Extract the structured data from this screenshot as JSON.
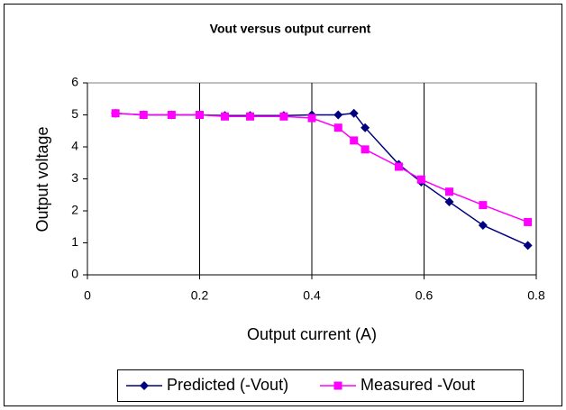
{
  "chart_data": {
    "type": "scatter",
    "title": "Vout versus output current",
    "x_label": "Output current (A)",
    "y_label": "Output voltage",
    "xlim": [
      0,
      0.8
    ],
    "xticks": [
      0,
      0.2,
      0.4,
      0.6,
      0.8
    ],
    "ylim": [
      0,
      6
    ],
    "yticks": [
      0,
      1,
      2,
      3,
      4,
      5,
      6
    ],
    "grid": "x",
    "legend": "bottom",
    "series": [
      {
        "name": "Predicted (-Vout)",
        "color": "#000080",
        "marker": "diamond",
        "x": [
          0.05,
          0.1,
          0.15,
          0.2,
          0.245,
          0.29,
          0.35,
          0.4,
          0.447,
          0.475,
          0.495,
          0.555,
          0.595,
          0.645,
          0.705,
          0.785
        ],
        "values": [
          5.05,
          5.0,
          5.0,
          5.0,
          4.98,
          4.98,
          4.98,
          5.0,
          5.0,
          5.05,
          4.6,
          3.45,
          2.9,
          2.28,
          1.55,
          0.92
        ]
      },
      {
        "name": "Measured -Vout",
        "color": "#ff00ff",
        "marker": "square",
        "x": [
          0.05,
          0.1,
          0.15,
          0.2,
          0.245,
          0.29,
          0.35,
          0.4,
          0.447,
          0.475,
          0.495,
          0.555,
          0.595,
          0.645,
          0.705,
          0.785
        ],
        "values": [
          5.05,
          5.0,
          5.0,
          5.0,
          4.95,
          4.95,
          4.95,
          4.9,
          4.6,
          4.2,
          3.92,
          3.38,
          2.98,
          2.6,
          2.18,
          1.65
        ]
      }
    ]
  }
}
